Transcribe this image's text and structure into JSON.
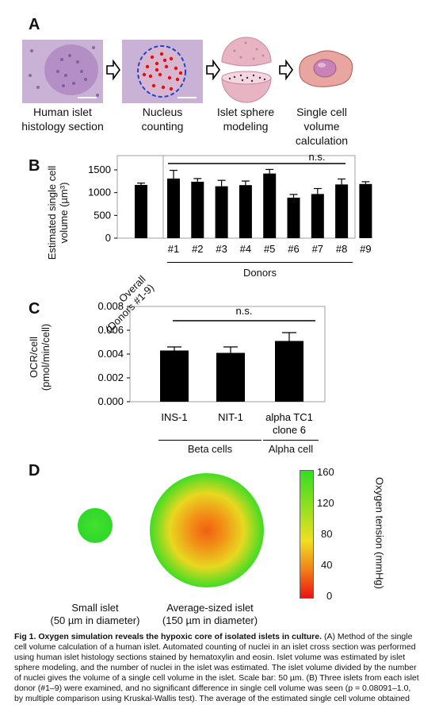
{
  "panelA": {
    "letter": "A",
    "steps": [
      {
        "line1": "Human islet",
        "line2": "histology section",
        "line3": ""
      },
      {
        "line1": "Nucleus",
        "line2": "counting",
        "line3": ""
      },
      {
        "line1": "Islet sphere",
        "line2": "modeling",
        "line3": ""
      },
      {
        "line1": "Single cell",
        "line2": "volume",
        "line3": "calculation"
      }
    ]
  },
  "panelB": {
    "letter": "B",
    "ylabel_line1": "Estimated single cell",
    "ylabel_line2": "volume (µm³)",
    "yticks": [
      "1500",
      "1000",
      "500",
      "0"
    ],
    "overall_label_line1": "Overall",
    "overall_label_line2": "(Donors #1-9)",
    "xlabel": "Donors",
    "significance": "n.s."
  },
  "panelC": {
    "letter": "C",
    "ylabel_line1": "OCR/cell",
    "ylabel_line2": "(pmol/min/cell)",
    "yticks": [
      "0.008",
      "0.006",
      "0.004",
      "0.002",
      "0.000"
    ],
    "significance": "n.s.",
    "cat_labels": [
      {
        "line1": "INS-1",
        "line2": ""
      },
      {
        "line1": "NIT-1",
        "line2": ""
      },
      {
        "line1": "alpha TC1",
        "line2": "clone 6"
      }
    ],
    "group_beta": "Beta cells",
    "group_alpha": "Alpha cell"
  },
  "panelD": {
    "letter": "D",
    "small_label_line1": "Small islet",
    "small_label_line2": "(50 µm in diameter)",
    "avg_label_line1": "Average-sized islet",
    "avg_label_line2": "(150 µm in diameter)",
    "colorbar_ticks": [
      "160",
      "120",
      "80",
      "40",
      "0"
    ],
    "colorbar_title": "Oxygen tension (mmHg)",
    "colors": {
      "high": "#33dd22",
      "mid": "#f0e020",
      "low": "#ee1111"
    }
  },
  "chart_data": [
    {
      "type": "bar",
      "title": "",
      "ylabel": "Estimated single cell volume (µm³)",
      "xlabel": "Donors",
      "ylim": [
        0,
        1500
      ],
      "categories": [
        "Overall (Donors #1-9)",
        "#1",
        "#2",
        "#3",
        "#4",
        "#5",
        "#6",
        "#7",
        "#8",
        "#9"
      ],
      "values": [
        1170,
        1310,
        1240,
        1140,
        1165,
        1420,
        890,
        970,
        1180,
        1190
      ],
      "errors": [
        40,
        180,
        70,
        130,
        90,
        90,
        70,
        120,
        120,
        50
      ],
      "annotation": "n.s.",
      "color": "#000000"
    },
    {
      "type": "bar",
      "title": "",
      "ylabel": "OCR/cell (pmol/min/cell)",
      "ylim": [
        0,
        0.008
      ],
      "categories": [
        "INS-1",
        "NIT-1",
        "alpha TC1 clone 6"
      ],
      "values": [
        0.0043,
        0.0041,
        0.0051
      ],
      "errors": [
        0.0003,
        0.0005,
        0.0007
      ],
      "groups": [
        {
          "name": "Beta cells",
          "members": [
            "INS-1",
            "NIT-1"
          ]
        },
        {
          "name": "Alpha cell",
          "members": [
            "alpha TC1 clone 6"
          ]
        }
      ],
      "annotation": "n.s.",
      "color": "#000000"
    }
  ],
  "caption": {
    "title": "Fig 1. Oxygen simulation reveals the hypoxic core of isolated islets in culture.",
    "lines": [
      " (A) Method of the single",
      "cell volume calculation of a human islet. Automated counting of nuclei in an islet cross section was performed",
      "using human islet histology sections stained by hematoxylin and eosin. Islet volume was estimated by islet",
      "sphere modeling, and the number of nuclei in the islet was estimated. The islet volume divided by the number",
      "of nuclei gives the volume of a single cell volume in the islet. Scale bar: 50 µm. (B) Three islets from each islet",
      "donor (#1–9) were examined, and no significant difference in single cell volume was seen (p = 0.08091–1.0,",
      "by multiple comparison using Kruskal-Wallis test). The average of the estimated single cell volume obtained"
    ]
  }
}
